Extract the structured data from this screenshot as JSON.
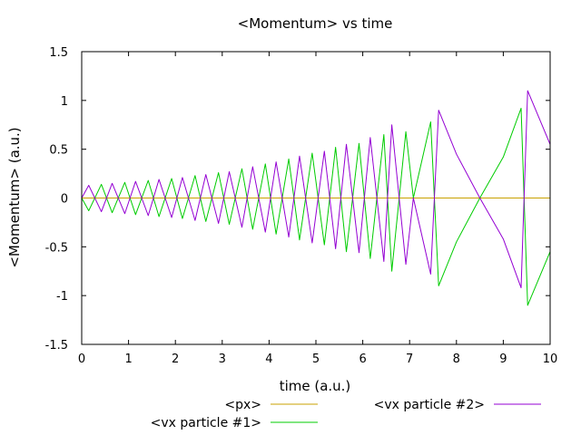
{
  "chart_data": {
    "type": "line",
    "title": "<Momentum> vs time",
    "xlabel": "time (a.u.)",
    "ylabel": "<Momentum> (a.u.)",
    "xlim": [
      0,
      10
    ],
    "ylim": [
      -1.5,
      1.5
    ],
    "xticks": [
      0,
      1,
      2,
      3,
      4,
      5,
      6,
      7,
      8,
      9,
      10
    ],
    "yticks": [
      -1.5,
      -1,
      -0.5,
      0,
      0.5,
      1,
      1.5
    ],
    "xtick_labels": [
      "0",
      "1",
      "2",
      "3",
      "4",
      "5",
      "6",
      "7",
      "8",
      "9",
      "10"
    ],
    "ytick_labels": [
      "-1.5",
      "-1",
      "-0.5",
      "0",
      "0.5",
      "1",
      "1.5"
    ],
    "grid": false,
    "legend_position": "bottom",
    "series": [
      {
        "name": "<px>",
        "color": "#c8a000",
        "x": [
          0,
          10
        ],
        "y": [
          0,
          0
        ]
      },
      {
        "name": "<vx particle #1>",
        "color": "#00cc00",
        "note": "antisymmetric to particle #2",
        "x": [
          0,
          0.15,
          0.42,
          0.65,
          0.92,
          1.15,
          1.42,
          1.65,
          1.92,
          2.15,
          2.42,
          2.65,
          2.92,
          3.15,
          3.42,
          3.65,
          3.92,
          4.15,
          4.42,
          4.65,
          4.92,
          5.18,
          5.42,
          5.65,
          5.92,
          6.16,
          6.45,
          6.62,
          6.92,
          7.08,
          7.45,
          7.62,
          8.0,
          8.5,
          9.0,
          9.38,
          9.52,
          10.0
        ],
        "y": [
          0,
          -0.13,
          0.14,
          -0.15,
          0.16,
          -0.17,
          0.18,
          -0.19,
          0.2,
          -0.21,
          0.23,
          -0.24,
          0.26,
          -0.27,
          0.3,
          -0.32,
          0.35,
          -0.37,
          0.4,
          -0.43,
          0.46,
          -0.48,
          0.52,
          -0.55,
          0.56,
          -0.62,
          0.65,
          -0.75,
          0.68,
          0.0,
          0.78,
          -0.9,
          -0.45,
          0.0,
          0.42,
          0.92,
          -1.1,
          -0.55
        ]
      },
      {
        "name": "<vx particle #2>",
        "color": "#9400d3",
        "note": "antisymmetric to particle #1",
        "x": [
          0,
          0.15,
          0.42,
          0.65,
          0.92,
          1.15,
          1.42,
          1.65,
          1.92,
          2.15,
          2.42,
          2.65,
          2.92,
          3.15,
          3.42,
          3.65,
          3.92,
          4.15,
          4.42,
          4.65,
          4.92,
          5.18,
          5.42,
          5.65,
          5.92,
          6.16,
          6.45,
          6.62,
          6.92,
          7.08,
          7.45,
          7.62,
          8.0,
          8.5,
          9.0,
          9.38,
          9.52,
          10.0
        ],
        "y": [
          0,
          0.13,
          -0.14,
          0.15,
          -0.16,
          0.17,
          -0.18,
          0.19,
          -0.2,
          0.21,
          -0.23,
          0.24,
          -0.26,
          0.27,
          -0.3,
          0.32,
          -0.35,
          0.37,
          -0.4,
          0.43,
          -0.46,
          0.48,
          -0.52,
          0.55,
          -0.56,
          0.62,
          -0.65,
          0.75,
          -0.68,
          0.0,
          -0.78,
          0.9,
          0.45,
          0.0,
          -0.42,
          -0.92,
          1.1,
          0.55
        ]
      }
    ]
  }
}
